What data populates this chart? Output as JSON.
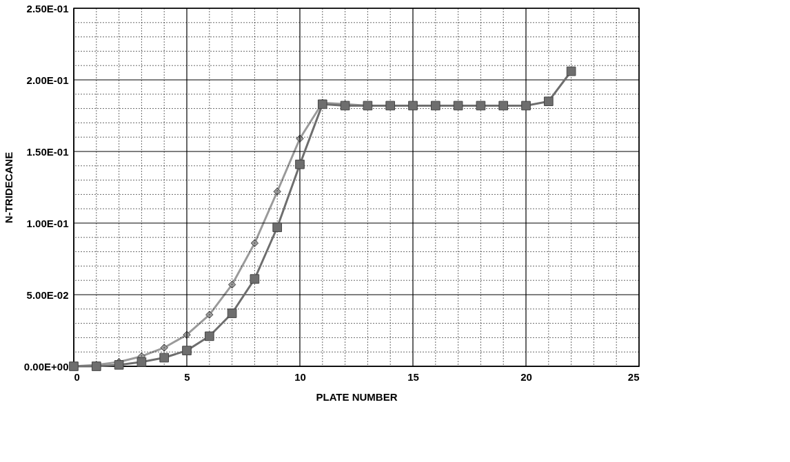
{
  "chart_data": {
    "type": "line",
    "xlabel": "PLATE NUMBER",
    "ylabel": "N-TRIDECANE",
    "xlim": [
      0,
      25
    ],
    "ylim": [
      0,
      0.25
    ],
    "xticks": [
      0,
      {
        "value": 1,
        "label": null
      },
      {
        "value": 2,
        "label": null
      },
      {
        "value": 3,
        "label": null
      },
      {
        "value": 4,
        "label": null
      },
      5,
      {
        "value": 6,
        "label": null
      },
      {
        "value": 7,
        "label": null
      },
      {
        "value": 8,
        "label": null
      },
      {
        "value": 9,
        "label": null
      },
      10,
      {
        "value": 11,
        "label": null
      },
      {
        "value": 12,
        "label": null
      },
      {
        "value": 13,
        "label": null
      },
      {
        "value": 14,
        "label": null
      },
      15,
      {
        "value": 16,
        "label": null
      },
      {
        "value": 17,
        "label": null
      },
      {
        "value": 18,
        "label": null
      },
      {
        "value": 19,
        "label": null
      },
      20,
      {
        "value": 21,
        "label": null
      },
      {
        "value": 22,
        "label": null
      },
      {
        "value": 23,
        "label": null
      },
      {
        "value": 24,
        "label": null
      },
      25
    ],
    "yticks": [
      {
        "value": 0,
        "label": "0.00E+00"
      },
      {
        "value": 0.01,
        "label": null
      },
      {
        "value": 0.02,
        "label": null
      },
      {
        "value": 0.03,
        "label": null
      },
      {
        "value": 0.04,
        "label": null
      },
      {
        "value": 0.05,
        "label": "5.00E-02"
      },
      {
        "value": 0.06,
        "label": null
      },
      {
        "value": 0.07,
        "label": null
      },
      {
        "value": 0.08,
        "label": null
      },
      {
        "value": 0.09,
        "label": null
      },
      {
        "value": 0.1,
        "label": "1.00E-01"
      },
      {
        "value": 0.11,
        "label": null
      },
      {
        "value": 0.12,
        "label": null
      },
      {
        "value": 0.13,
        "label": null
      },
      {
        "value": 0.14,
        "label": null
      },
      {
        "value": 0.15,
        "label": "1.50E-01"
      },
      {
        "value": 0.16,
        "label": null
      },
      {
        "value": 0.17,
        "label": null
      },
      {
        "value": 0.18,
        "label": null
      },
      {
        "value": 0.19,
        "label": null
      },
      {
        "value": 0.2,
        "label": "2.00E-01"
      },
      {
        "value": 0.21,
        "label": null
      },
      {
        "value": 0.22,
        "label": null
      },
      {
        "value": 0.23,
        "label": null
      },
      {
        "value": 0.24,
        "label": null
      },
      {
        "value": 0.25,
        "label": "2.50E-01"
      }
    ],
    "grid": true,
    "line_style": "solid",
    "series": [
      {
        "color": "#9a9a9a",
        "marker": "diamond",
        "x": [
          0,
          1,
          2,
          3,
          4,
          5,
          6,
          7,
          8,
          9,
          10,
          11,
          12,
          13,
          14,
          15,
          16,
          17,
          18,
          19,
          20
        ],
        "values": [
          0.0,
          0.001,
          0.003,
          0.007,
          0.013,
          0.022,
          0.036,
          0.057,
          0.086,
          0.122,
          0.159,
          0.184,
          0.183,
          0.182,
          0.182,
          0.182,
          0.182,
          0.182,
          0.182,
          0.182,
          0.182
        ]
      },
      {
        "color": "#6e6e6e",
        "marker": "square",
        "x": [
          0,
          1,
          2,
          3,
          4,
          5,
          6,
          7,
          8,
          9,
          10,
          11,
          12,
          13,
          14,
          15,
          16,
          17,
          18,
          19,
          20,
          21,
          22
        ],
        "values": [
          0.0,
          0.0,
          0.001,
          0.003,
          0.006,
          0.011,
          0.021,
          0.037,
          0.061,
          0.097,
          0.141,
          0.183,
          0.182,
          0.182,
          0.182,
          0.182,
          0.182,
          0.182,
          0.182,
          0.182,
          0.182,
          0.185,
          0.206
        ]
      }
    ]
  }
}
